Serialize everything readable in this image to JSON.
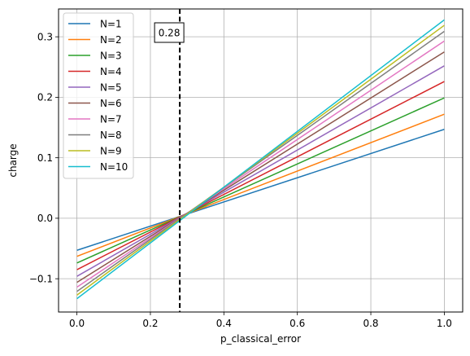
{
  "chart_data": {
    "type": "line",
    "xlabel": "p_classical_error",
    "ylabel": "charge",
    "xlim": [
      -0.05,
      1.05
    ],
    "ylim": [
      -0.155,
      0.346
    ],
    "x_ticks": [
      0.0,
      0.2,
      0.4,
      0.6,
      0.8,
      1.0
    ],
    "x_tick_labels": [
      "0.0",
      "0.2",
      "0.4",
      "0.6",
      "0.8",
      "1.0"
    ],
    "y_ticks": [
      -0.1,
      0.0,
      0.1,
      0.2,
      0.3
    ],
    "y_tick_labels": [
      "−0.1",
      "0.0",
      "0.1",
      "0.2",
      "0.3"
    ],
    "grid": true,
    "legend_position": "top-left",
    "vline": {
      "x": 0.28,
      "style": "dashed",
      "color": "#000000",
      "label": "0.28"
    },
    "series": [
      {
        "name": "N=1",
        "color": "#1f77b4",
        "x": [
          0.0,
          1.0
        ],
        "y": [
          -0.053,
          0.147
        ]
      },
      {
        "name": "N=2",
        "color": "#ff7f0e",
        "x": [
          0.0,
          1.0
        ],
        "y": [
          -0.063,
          0.172
        ]
      },
      {
        "name": "N=3",
        "color": "#2ca02c",
        "x": [
          0.0,
          1.0
        ],
        "y": [
          -0.074,
          0.199
        ]
      },
      {
        "name": "N=4",
        "color": "#d62728",
        "x": [
          0.0,
          1.0
        ],
        "y": [
          -0.085,
          0.226
        ]
      },
      {
        "name": "N=5",
        "color": "#9467bd",
        "x": [
          0.0,
          1.0
        ],
        "y": [
          -0.096,
          0.252
        ]
      },
      {
        "name": "N=6",
        "color": "#8c564b",
        "x": [
          0.0,
          1.0
        ],
        "y": [
          -0.106,
          0.275
        ]
      },
      {
        "name": "N=7",
        "color": "#e377c2",
        "x": [
          0.0,
          1.0
        ],
        "y": [
          -0.114,
          0.293
        ]
      },
      {
        "name": "N=8",
        "color": "#7f7f7f",
        "x": [
          0.0,
          1.0
        ],
        "y": [
          -0.121,
          0.309
        ]
      },
      {
        "name": "N=9",
        "color": "#bcbd22",
        "x": [
          0.0,
          1.0
        ],
        "y": [
          -0.127,
          0.319
        ]
      },
      {
        "name": "N=10",
        "color": "#17becf",
        "x": [
          0.0,
          1.0
        ],
        "y": [
          -0.133,
          0.328
        ]
      }
    ]
  }
}
